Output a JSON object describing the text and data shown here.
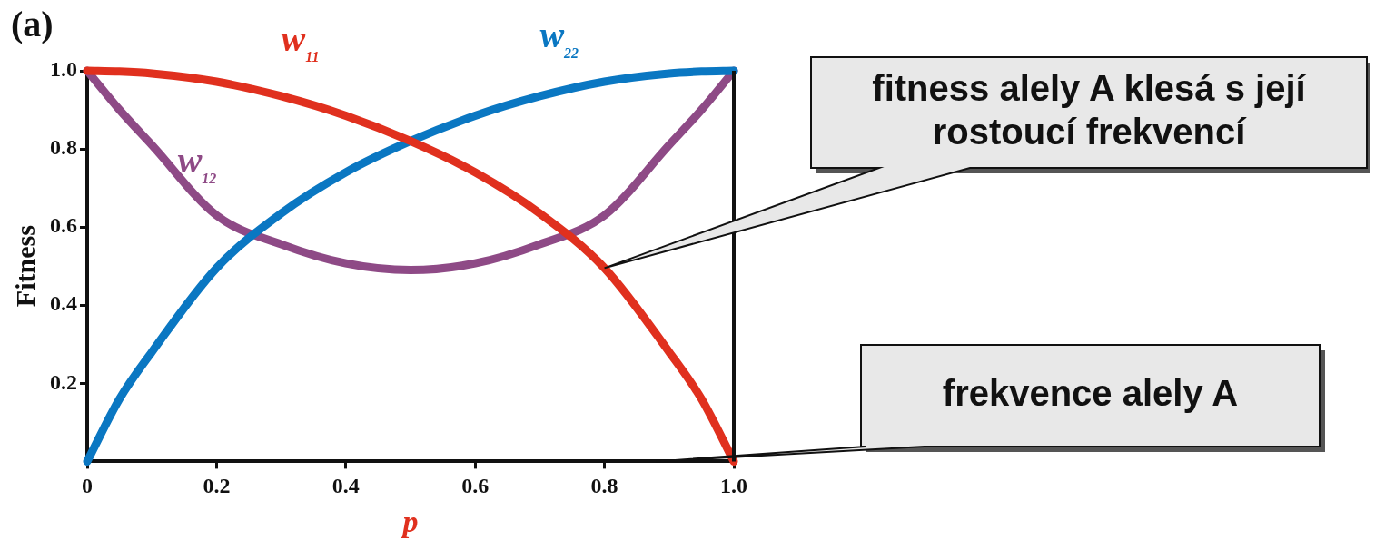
{
  "chart_data": {
    "type": "line",
    "xlabel": "p",
    "ylabel": "Fitness",
    "x": [
      0,
      0.05,
      0.1,
      0.2,
      0.3,
      0.4,
      0.5,
      0.6,
      0.7,
      0.8,
      0.9,
      0.95,
      1.0
    ],
    "series": [
      {
        "color": "#e0301e",
        "values": [
          1.0,
          0.998,
          0.993,
          0.972,
          0.935,
          0.885,
          0.82,
          0.74,
          0.635,
          0.495,
          0.28,
          0.16,
          0
        ]
      },
      {
        "color": "#0a77c2",
        "values": [
          0,
          0.16,
          0.28,
          0.495,
          0.635,
          0.74,
          0.82,
          0.885,
          0.935,
          0.972,
          0.993,
          0.998,
          1.0
        ]
      },
      {
        "color": "#8e4a86",
        "values": [
          1.0,
          0.9,
          0.81,
          0.63,
          0.556,
          0.507,
          0.49,
          0.507,
          0.556,
          0.63,
          0.81,
          0.9,
          1.0
        ]
      }
    ],
    "xlim": [
      0,
      1
    ],
    "ylim": [
      0,
      1
    ],
    "xticks": [
      0,
      0.2,
      0.4,
      0.6,
      0.8,
      {
        "value": 1,
        "label": "1.0"
      }
    ],
    "yticks": [
      0.2,
      0.4,
      0.6,
      0.8,
      {
        "value": 1,
        "label": "1.0"
      }
    ],
    "grid": false,
    "legend": false,
    "marker": "none",
    "line_style": "solid",
    "annotations": [
      "(a)",
      "w$_{11}$",
      "w$_{22}$",
      "w$_{12}$",
      "fitness alely A klesá s její rostoucí frekvencí",
      "frekvence alely A"
    ]
  }
}
